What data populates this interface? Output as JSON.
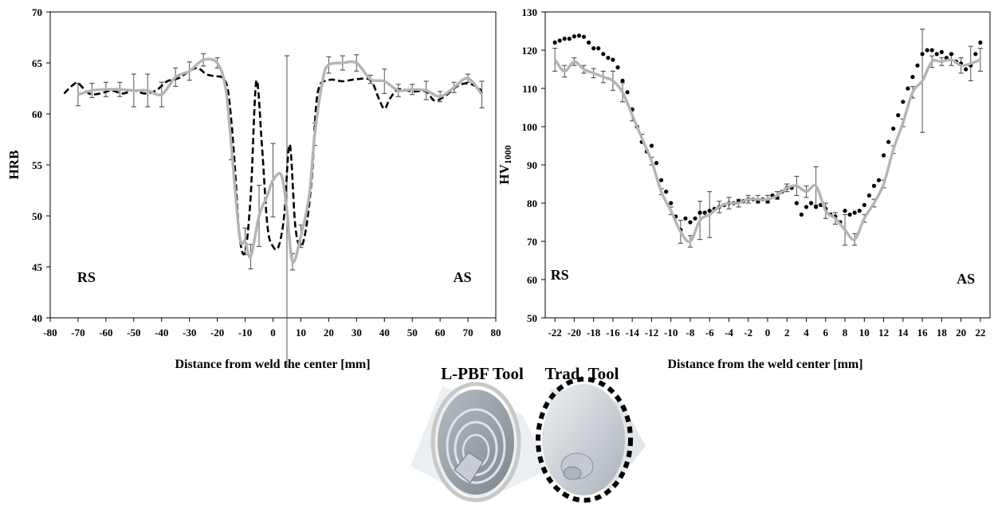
{
  "chart_data": [
    {
      "type": "line",
      "xlabel": "Distance from weld the center [mm]",
      "ylabel": "HRB",
      "xlim": [
        -80,
        80
      ],
      "ylim": [
        40,
        70
      ],
      "xticks": [
        -80,
        -70,
        -60,
        -50,
        -40,
        -30,
        -20,
        -10,
        0,
        10,
        20,
        30,
        40,
        50,
        60,
        70,
        80
      ],
      "yticks": [
        40,
        45,
        50,
        55,
        60,
        65,
        70
      ],
      "grid": false,
      "annotations": [
        {
          "text": "RS",
          "x": -67,
          "y": 43.5
        },
        {
          "text": "AS",
          "x": 68,
          "y": 43.5
        }
      ],
      "series": [
        {
          "style": "dashed-black",
          "x": [
            -75,
            -72,
            -70,
            -66,
            -62,
            -58,
            -54,
            -50,
            -46,
            -42,
            -38,
            -34,
            -30,
            -27,
            -24,
            -21,
            -18,
            -16,
            -14,
            -12,
            -10,
            -8,
            -6,
            -4,
            -2,
            0,
            2,
            4,
            6,
            8,
            10,
            12,
            14,
            16,
            20,
            25,
            30,
            35,
            38,
            40,
            42,
            45,
            50,
            55,
            58,
            62,
            66,
            70,
            74,
            75
          ],
          "y": [
            62,
            62.8,
            63,
            62,
            62,
            62.3,
            62,
            62.3,
            62,
            62.3,
            63.2,
            63.5,
            64.2,
            64.5,
            63.9,
            63.7,
            63.5,
            62,
            56,
            48,
            46.5,
            52,
            63.2,
            57,
            49,
            47,
            47,
            50,
            57,
            49,
            47,
            49,
            54,
            62,
            63.3,
            63.2,
            63.4,
            63.3,
            61.5,
            60.5,
            61.5,
            62.4,
            62.2,
            62.2,
            61.3,
            61.8,
            62.7,
            63,
            62.5,
            62
          ]
        },
        {
          "style": "solid-grey",
          "x": [
            -70,
            -65,
            -60,
            -55,
            -50,
            -45,
            -40,
            -35,
            -30,
            -25,
            -20,
            -17,
            -15,
            -12,
            -10,
            -8,
            -5,
            -2,
            0,
            3,
            5,
            7,
            10,
            13,
            15,
            18,
            20,
            25,
            30,
            35,
            40,
            45,
            50,
            55,
            60,
            65,
            70,
            75
          ],
          "y": [
            61.9,
            62.3,
            62.4,
            62.4,
            62.3,
            62.3,
            61.9,
            63.6,
            64.2,
            65.3,
            65,
            62.5,
            57,
            48,
            47.5,
            46,
            50,
            52,
            53.5,
            54,
            50.5,
            45.5,
            48,
            52,
            58,
            63.5,
            64.8,
            65,
            65,
            63.4,
            63.2,
            62.3,
            62.4,
            62.3,
            61.7,
            62.6,
            63.5,
            61.9
          ]
        }
      ],
      "error_bar_x": [
        -70,
        -65,
        -60,
        -55,
        -50,
        -45,
        -40,
        -35,
        -30,
        -25,
        -20,
        -15,
        -10,
        -8,
        -5,
        0,
        5,
        7,
        10,
        15,
        20,
        25,
        30,
        35,
        40,
        45,
        50,
        55,
        60,
        65,
        70,
        75
      ],
      "error_bar_y": [
        61.9,
        62.3,
        62.4,
        62.4,
        62.3,
        62.3,
        61.9,
        63.6,
        64.2,
        65.3,
        65,
        57,
        47.5,
        46,
        50,
        53.5,
        50.5,
        45.5,
        48,
        58,
        64.8,
        65,
        65,
        63.4,
        63.2,
        62.3,
        62.4,
        62.3,
        61.7,
        62.6,
        63.5,
        61.9
      ],
      "error_bar_err": [
        1.1,
        0.7,
        0.7,
        0.7,
        1.6,
        1.6,
        1.2,
        0.9,
        0.9,
        0.6,
        0.5,
        1.5,
        1.3,
        1.2,
        3,
        3.6,
        15.2,
        0.8,
        1.1,
        1.1,
        0.8,
        0.7,
        0.8,
        0.4,
        1.2,
        0.6,
        0.5,
        0.9,
        0.5,
        0.5,
        0.4,
        1.3
      ],
      "error_bar_low": [
        0,
        0,
        0,
        0,
        0,
        0,
        0,
        0,
        0,
        0,
        0,
        0,
        0,
        0,
        0,
        0,
        0,
        0,
        0,
        0,
        0,
        0,
        0,
        0,
        0,
        0,
        0,
        0,
        0,
        0,
        0,
        0
      ]
    },
    {
      "type": "line",
      "xlabel": "Distance from the weld center [mm]",
      "ylabel": "HV",
      "ylabel_sub": "1000",
      "xlim": [
        -23,
        23
      ],
      "ylim": [
        50,
        130
      ],
      "xticks": [
        -22,
        -20,
        -18,
        -16,
        -14,
        -12,
        -10,
        -8,
        -6,
        -4,
        -2,
        0,
        2,
        4,
        6,
        8,
        10,
        12,
        14,
        16,
        18,
        20,
        22
      ],
      "yticks": [
        50,
        60,
        70,
        80,
        90,
        100,
        110,
        120,
        130
      ],
      "grid": false,
      "annotations": [
        {
          "text": "RS",
          "x": -21.5,
          "y": 60
        },
        {
          "text": "AS",
          "x": 20.5,
          "y": 59
        }
      ],
      "series": [
        {
          "style": "dotted-black",
          "x": [
            -22,
            -21.5,
            -21,
            -20.5,
            -20,
            -19.5,
            -19,
            -18.5,
            -18,
            -17.5,
            -17,
            -16.5,
            -16,
            -15.5,
            -15,
            -14.5,
            -14,
            -13.5,
            -13,
            -12.5,
            -12,
            -11.5,
            -11,
            -10.5,
            -10,
            -9.5,
            -9,
            -8.5,
            -8,
            -7.5,
            -7,
            -6.5,
            -6,
            -5.5,
            -5,
            -4.5,
            -4,
            -3.5,
            -3,
            -2.5,
            -2,
            -1.5,
            -1,
            -0.5,
            0,
            0.5,
            1,
            1.5,
            2,
            2.5,
            3,
            3.5,
            4,
            4.5,
            5,
            5.5,
            6,
            6.5,
            7,
            7.5,
            8,
            8.5,
            9,
            9.5,
            10,
            10.5,
            11,
            11.5,
            12,
            12.5,
            13,
            13.5,
            14,
            14.5,
            15,
            15.5,
            16,
            16.5,
            17,
            17.5,
            18,
            18.5,
            19,
            19.5,
            20,
            20.5,
            21,
            21.5,
            22
          ],
          "y": [
            122,
            122.5,
            123,
            123,
            123.6,
            123.8,
            123.5,
            122,
            120.5,
            120.5,
            119,
            118,
            117.5,
            115.5,
            112,
            109,
            104.5,
            100,
            96,
            93.5,
            95,
            90.5,
            86,
            83,
            80,
            76.5,
            73,
            76,
            75,
            76,
            77.5,
            77.5,
            78,
            78.5,
            79,
            79.5,
            80,
            80,
            80.5,
            80.5,
            81,
            81,
            80.5,
            81,
            80.5,
            82,
            81.5,
            83,
            84,
            84,
            80,
            77,
            79,
            80,
            79,
            79.5,
            78.5,
            77,
            76.5,
            75,
            78,
            77,
            77.5,
            78,
            79.5,
            82,
            84.5,
            86,
            92.5,
            96,
            99.5,
            103,
            106.5,
            110,
            113,
            116,
            119,
            120,
            120,
            119,
            119.5,
            118,
            119,
            117,
            116.5,
            115,
            116,
            119,
            122
          ]
        },
        {
          "style": "solid-grey",
          "x": [
            -22,
            -21,
            -20,
            -19,
            -18,
            -17,
            -16,
            -15,
            -14,
            -13,
            -12,
            -11,
            -10,
            -9,
            -8,
            -7,
            -6,
            -5,
            -4,
            -3,
            -2,
            -1,
            0,
            1,
            2,
            3,
            4,
            5,
            6,
            7,
            8,
            9,
            10,
            11,
            12,
            13,
            14,
            15,
            16,
            17,
            18,
            19,
            20,
            21,
            22
          ],
          "y": [
            117.5,
            114.5,
            117,
            115,
            114,
            113,
            112,
            109,
            103,
            97,
            91,
            83,
            78,
            72.5,
            70,
            75.5,
            77,
            79,
            80,
            80,
            81,
            81,
            81,
            82,
            84,
            84.5,
            83,
            84.5,
            78,
            76,
            73,
            70.5,
            76,
            80,
            85,
            94,
            101,
            109,
            112,
            117,
            117,
            117.5,
            116,
            116.5,
            117.5
          ]
        }
      ],
      "error_bar_x": [
        -22,
        -21,
        -20,
        -19,
        -18,
        -17,
        -16,
        -15,
        -14,
        -13,
        -12,
        -11,
        -10,
        -9,
        -8,
        -7,
        -6,
        -5,
        -4,
        -3,
        -2,
        -1,
        0,
        1,
        2,
        3,
        4,
        5,
        6,
        7,
        8,
        9,
        10,
        11,
        12,
        13,
        14,
        15,
        16,
        17,
        18,
        19,
        20,
        21,
        22
      ],
      "error_bar_y": [
        117.5,
        114.5,
        117,
        115,
        114,
        113,
        112,
        109,
        103,
        97,
        91,
        83,
        78,
        72.5,
        70,
        75.5,
        77,
        79,
        80,
        80,
        81,
        81,
        81,
        82,
        84,
        84.5,
        83,
        84.5,
        78,
        76,
        73,
        70.5,
        76,
        80,
        85,
        94,
        101,
        109,
        112,
        117,
        117,
        117.5,
        116,
        116.5,
        117.5
      ],
      "error_bar_err": [
        3,
        1.5,
        1,
        1,
        1.2,
        1.5,
        2.5,
        2.5,
        1.5,
        1,
        1,
        0.8,
        1,
        3,
        1.5,
        5,
        6,
        1.5,
        1.5,
        1,
        1,
        1,
        1,
        1,
        1,
        2.5,
        1.5,
        5,
        2,
        1.5,
        4,
        1.5,
        1,
        1,
        1,
        1,
        1,
        1.5,
        13.5,
        1.5,
        1,
        1.5,
        2,
        4.5,
        3
      ],
      "error_bar_low": [
        0,
        0,
        0,
        0,
        0,
        0,
        0,
        0,
        0,
        0,
        0,
        0,
        0,
        0,
        0,
        0,
        0,
        0,
        0,
        0,
        0,
        0,
        0,
        0,
        0,
        0,
        0,
        0,
        0,
        0,
        0,
        0,
        0,
        0,
        0,
        0,
        0,
        0,
        0,
        0,
        0,
        0,
        0,
        0,
        0
      ]
    }
  ],
  "legend": {
    "lpbf_label": "L-PBF Tool",
    "trad_label": "Trad. Tool",
    "lpbf_ring_color": "#c8c8c8",
    "trad_ring_color": "#000000"
  },
  "colors": {
    "lpbf_series": "#b4b4b4",
    "trad_series": "#000000",
    "error_bar": "#555555"
  }
}
